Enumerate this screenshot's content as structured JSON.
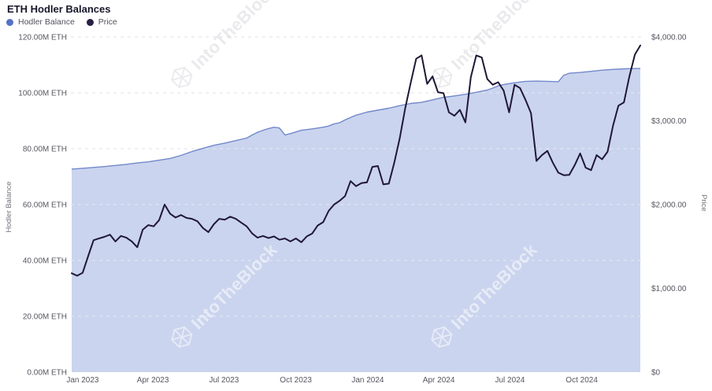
{
  "chart_data": {
    "type": "area+line dual-axis time series",
    "title": "ETH Hodler Balances",
    "watermark": "IntoTheBlock",
    "x_domain": [
      "2022-12-17",
      "2024-12-17"
    ],
    "x_ticks": [
      {
        "label": "Jan 2023",
        "date": "2023-01-01"
      },
      {
        "label": "Apr 2023",
        "date": "2023-04-01"
      },
      {
        "label": "Jul 2023",
        "date": "2023-07-01"
      },
      {
        "label": "Oct 2023",
        "date": "2023-10-01"
      },
      {
        "label": "Jan 2024",
        "date": "2024-01-01"
      },
      {
        "label": "Apr 2024",
        "date": "2024-04-01"
      },
      {
        "label": "Jul 2024",
        "date": "2024-07-01"
      },
      {
        "label": "Oct 2024",
        "date": "2024-10-01"
      }
    ],
    "left_axis": {
      "title": "Hodler Balance",
      "range": [
        0,
        120
      ],
      "ticks": [
        {
          "label": "0.00M ETH",
          "value": 0
        },
        {
          "label": "20.00M ETH",
          "value": 20
        },
        {
          "label": "40.00M ETH",
          "value": 40
        },
        {
          "label": "60.00M ETH",
          "value": 60
        },
        {
          "label": "80.00M ETH",
          "value": 80
        },
        {
          "label": "100.00M ETH",
          "value": 100
        },
        {
          "label": "120.00M ETH",
          "value": 120
        }
      ],
      "grid_values": [
        20,
        40,
        60,
        80,
        100,
        120
      ]
    },
    "right_axis": {
      "title": "Price",
      "range": [
        0,
        4000
      ],
      "ticks": [
        {
          "label": "$0",
          "value": 0
        },
        {
          "label": "$1,000.00",
          "value": 1000
        },
        {
          "label": "$2,000.00",
          "value": 2000
        },
        {
          "label": "$3,000.00",
          "value": 3000
        },
        {
          "label": "$4,000.00",
          "value": 4000
        }
      ]
    },
    "colors": {
      "area_fill": "#cad4ee",
      "area_edge": "#7288ca",
      "price_line": "#201736",
      "grid": "#e2e2ea",
      "tick_text": "#55555f",
      "axis_title_text": "#73737e"
    },
    "series": [
      {
        "name": "Hodler Balance",
        "type": "area",
        "axis": "left",
        "unit": "M ETH",
        "legend_color": "#5571c7",
        "color": "#7288ca",
        "fill": "#cad4ee",
        "points": [
          [
            "2022-12-18",
            72.7
          ],
          [
            "2023-01-01",
            73.0
          ],
          [
            "2023-01-15",
            73.3
          ],
          [
            "2023-01-29",
            73.6
          ],
          [
            "2023-02-12",
            74.0
          ],
          [
            "2023-02-26",
            74.4
          ],
          [
            "2023-03-12",
            74.9
          ],
          [
            "2023-03-26",
            75.3
          ],
          [
            "2023-04-09",
            75.9
          ],
          [
            "2023-04-23",
            76.5
          ],
          [
            "2023-05-07",
            77.6
          ],
          [
            "2023-05-21",
            79.0
          ],
          [
            "2023-06-04",
            80.1
          ],
          [
            "2023-06-18",
            81.2
          ],
          [
            "2023-07-02",
            82.0
          ],
          [
            "2023-07-16",
            82.9
          ],
          [
            "2023-07-30",
            83.8
          ],
          [
            "2023-08-06",
            84.9
          ],
          [
            "2023-08-13",
            85.9
          ],
          [
            "2023-08-20",
            86.6
          ],
          [
            "2023-08-27",
            87.2
          ],
          [
            "2023-09-03",
            87.7
          ],
          [
            "2023-09-10",
            87.4
          ],
          [
            "2023-09-17",
            84.9
          ],
          [
            "2023-09-24",
            85.4
          ],
          [
            "2023-10-08",
            86.6
          ],
          [
            "2023-10-22",
            87.1
          ],
          [
            "2023-11-05",
            87.7
          ],
          [
            "2023-11-12",
            88.1
          ],
          [
            "2023-11-19",
            88.9
          ],
          [
            "2023-11-26",
            89.3
          ],
          [
            "2023-12-03",
            90.3
          ],
          [
            "2023-12-17",
            92.0
          ],
          [
            "2023-12-31",
            93.1
          ],
          [
            "2024-01-14",
            93.8
          ],
          [
            "2024-01-28",
            94.5
          ],
          [
            "2024-02-11",
            95.4
          ],
          [
            "2024-02-25",
            96.2
          ],
          [
            "2024-03-10",
            96.6
          ],
          [
            "2024-03-24",
            97.5
          ],
          [
            "2024-04-07",
            98.4
          ],
          [
            "2024-04-21",
            98.9
          ],
          [
            "2024-05-05",
            99.5
          ],
          [
            "2024-05-19",
            100.2
          ],
          [
            "2024-06-02",
            101.0
          ],
          [
            "2024-06-09",
            101.7
          ],
          [
            "2024-06-16",
            102.5
          ],
          [
            "2024-06-23",
            103.0
          ],
          [
            "2024-07-07",
            103.6
          ],
          [
            "2024-07-21",
            104.1
          ],
          [
            "2024-08-04",
            104.2
          ],
          [
            "2024-08-18",
            104.1
          ],
          [
            "2024-09-01",
            104.0
          ],
          [
            "2024-09-08",
            106.3
          ],
          [
            "2024-09-15",
            107.0
          ],
          [
            "2024-09-29",
            107.3
          ],
          [
            "2024-10-13",
            107.7
          ],
          [
            "2024-10-27",
            108.1
          ],
          [
            "2024-11-10",
            108.4
          ],
          [
            "2024-11-24",
            108.6
          ],
          [
            "2024-12-08",
            108.7
          ],
          [
            "2024-12-15",
            108.7
          ]
        ]
      },
      {
        "name": "Price",
        "type": "line",
        "axis": "right",
        "unit": "USD",
        "legend_color": "#2a1f45",
        "color": "#201736",
        "points": [
          [
            "2022-12-18",
            1180
          ],
          [
            "2022-12-25",
            1150
          ],
          [
            "2023-01-01",
            1185
          ],
          [
            "2023-01-08",
            1380
          ],
          [
            "2023-01-15",
            1575
          ],
          [
            "2023-01-22",
            1595
          ],
          [
            "2023-01-29",
            1615
          ],
          [
            "2023-02-05",
            1640
          ],
          [
            "2023-02-12",
            1560
          ],
          [
            "2023-02-19",
            1625
          ],
          [
            "2023-02-26",
            1605
          ],
          [
            "2023-03-05",
            1560
          ],
          [
            "2023-03-12",
            1490
          ],
          [
            "2023-03-19",
            1700
          ],
          [
            "2023-03-26",
            1755
          ],
          [
            "2023-04-02",
            1740
          ],
          [
            "2023-04-09",
            1815
          ],
          [
            "2023-04-16",
            2000
          ],
          [
            "2023-04-23",
            1890
          ],
          [
            "2023-04-30",
            1845
          ],
          [
            "2023-05-07",
            1875
          ],
          [
            "2023-05-14",
            1840
          ],
          [
            "2023-05-21",
            1830
          ],
          [
            "2023-05-28",
            1800
          ],
          [
            "2023-06-04",
            1720
          ],
          [
            "2023-06-11",
            1670
          ],
          [
            "2023-06-18",
            1765
          ],
          [
            "2023-06-25",
            1830
          ],
          [
            "2023-07-02",
            1820
          ],
          [
            "2023-07-09",
            1855
          ],
          [
            "2023-07-16",
            1830
          ],
          [
            "2023-07-23",
            1785
          ],
          [
            "2023-07-30",
            1740
          ],
          [
            "2023-08-06",
            1655
          ],
          [
            "2023-08-13",
            1605
          ],
          [
            "2023-08-20",
            1625
          ],
          [
            "2023-08-27",
            1600
          ],
          [
            "2023-09-03",
            1620
          ],
          [
            "2023-09-10",
            1580
          ],
          [
            "2023-09-17",
            1595
          ],
          [
            "2023-09-24",
            1560
          ],
          [
            "2023-10-01",
            1595
          ],
          [
            "2023-10-08",
            1550
          ],
          [
            "2023-10-15",
            1620
          ],
          [
            "2023-10-22",
            1655
          ],
          [
            "2023-10-29",
            1750
          ],
          [
            "2023-11-05",
            1790
          ],
          [
            "2023-11-12",
            1925
          ],
          [
            "2023-11-19",
            2000
          ],
          [
            "2023-11-26",
            2045
          ],
          [
            "2023-12-03",
            2100
          ],
          [
            "2023-12-10",
            2280
          ],
          [
            "2023-12-17",
            2220
          ],
          [
            "2023-12-24",
            2255
          ],
          [
            "2023-12-31",
            2265
          ],
          [
            "2024-01-07",
            2450
          ],
          [
            "2024-01-14",
            2460
          ],
          [
            "2024-01-21",
            2240
          ],
          [
            "2024-01-28",
            2250
          ],
          [
            "2024-02-04",
            2500
          ],
          [
            "2024-02-11",
            2790
          ],
          [
            "2024-02-18",
            3150
          ],
          [
            "2024-02-25",
            3450
          ],
          [
            "2024-03-03",
            3740
          ],
          [
            "2024-03-10",
            3780
          ],
          [
            "2024-03-17",
            3440
          ],
          [
            "2024-03-24",
            3530
          ],
          [
            "2024-03-31",
            3340
          ],
          [
            "2024-04-07",
            3330
          ],
          [
            "2024-04-14",
            3100
          ],
          [
            "2024-04-21",
            3060
          ],
          [
            "2024-04-28",
            3130
          ],
          [
            "2024-05-05",
            2980
          ],
          [
            "2024-05-12",
            3520
          ],
          [
            "2024-05-19",
            3780
          ],
          [
            "2024-05-26",
            3755
          ],
          [
            "2024-06-02",
            3500
          ],
          [
            "2024-06-09",
            3430
          ],
          [
            "2024-06-16",
            3460
          ],
          [
            "2024-06-23",
            3360
          ],
          [
            "2024-06-30",
            3100
          ],
          [
            "2024-07-07",
            3430
          ],
          [
            "2024-07-14",
            3390
          ],
          [
            "2024-07-21",
            3250
          ],
          [
            "2024-07-28",
            3090
          ],
          [
            "2024-08-04",
            2520
          ],
          [
            "2024-08-11",
            2590
          ],
          [
            "2024-08-18",
            2640
          ],
          [
            "2024-08-25",
            2500
          ],
          [
            "2024-09-01",
            2380
          ],
          [
            "2024-09-08",
            2350
          ],
          [
            "2024-09-15",
            2355
          ],
          [
            "2024-09-22",
            2470
          ],
          [
            "2024-09-29",
            2610
          ],
          [
            "2024-10-06",
            2440
          ],
          [
            "2024-10-13",
            2410
          ],
          [
            "2024-10-20",
            2590
          ],
          [
            "2024-10-27",
            2540
          ],
          [
            "2024-11-03",
            2630
          ],
          [
            "2024-11-10",
            2940
          ],
          [
            "2024-11-17",
            3180
          ],
          [
            "2024-11-24",
            3220
          ],
          [
            "2024-12-01",
            3530
          ],
          [
            "2024-12-08",
            3790
          ],
          [
            "2024-12-15",
            3900
          ]
        ]
      }
    ],
    "grid": "horizontal dashed lines every 20M ETH",
    "legend_position": "top-left"
  }
}
